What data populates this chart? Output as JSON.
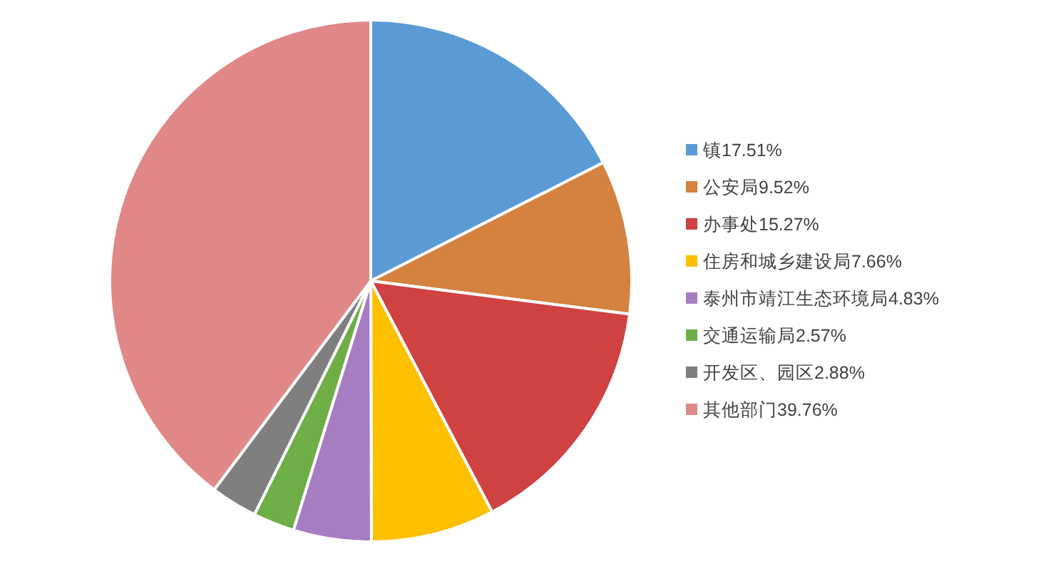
{
  "chart_data": {
    "type": "pie",
    "categories": [
      "镇17.51%",
      "公安局9.52%",
      "办事处15.27%",
      "住房和城乡建设局7.66%",
      "泰州市靖江生态环境局4.83%",
      "交通运输局2.57%",
      "开发区、园区2.88%",
      "其他部门39.76%"
    ],
    "values": [
      17.51,
      9.52,
      15.27,
      7.66,
      4.83,
      2.57,
      2.88,
      39.76
    ],
    "colors": [
      "#5b9bd5",
      "#d5813f",
      "#d04141",
      "#ffc000",
      "#a77dc2",
      "#6fad47",
      "#7f7f7f",
      "#e08888"
    ],
    "legend": "right"
  }
}
